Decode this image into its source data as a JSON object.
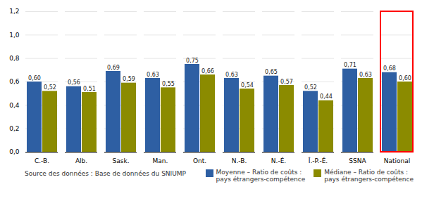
{
  "chart_data": {
    "type": "bar",
    "categories": [
      "C.-B.",
      "Alb.",
      "Sask.",
      "Man.",
      "Ont.",
      "N.-B.",
      "N.-É.",
      "Î.-P.-É.",
      "SSNA",
      "National"
    ],
    "series": [
      {
        "name": "Moyenne – Ratio de coûts :\npays étrangers-compétence",
        "color": "#2E5FA3",
        "values": [
          0.6,
          0.56,
          0.69,
          0.63,
          0.75,
          0.63,
          0.65,
          0.52,
          0.71,
          0.68
        ],
        "value_labels": [
          "0,60",
          "0,56",
          "0,69",
          "0,63",
          "0,75",
          "0,63",
          "0,65",
          "0,52",
          "0,71",
          "0,68"
        ]
      },
      {
        "name": "Médiane – Ratio de coûts :\npays étrangers-compétence",
        "color": "#8B8B00",
        "values": [
          0.52,
          0.51,
          0.59,
          0.55,
          0.66,
          0.54,
          0.57,
          0.44,
          0.63,
          0.6
        ],
        "value_labels": [
          "0,52",
          "0,51",
          "0,59",
          "0,55",
          "0,66",
          "0,54",
          "0,57",
          "0,44",
          "0,63",
          "0,60"
        ]
      }
    ],
    "ylim": [
      0.0,
      1.2
    ],
    "yticks": [
      {
        "value": 0.0,
        "label": "0,0"
      },
      {
        "value": 0.2,
        "label": "0,2"
      },
      {
        "value": 0.4,
        "label": "0,4"
      },
      {
        "value": 0.6,
        "label": "0,6"
      },
      {
        "value": 0.8,
        "label": "0,8"
      },
      {
        "value": 1.0,
        "label": "1,0"
      },
      {
        "value": 1.2,
        "label": "1,2"
      }
    ],
    "grid": true,
    "data_labels": true,
    "legend": "bottom",
    "caption": "Source des données : Base de données du SNIUMP",
    "annotations": [
      {
        "type": "box",
        "x": "National",
        "color": "#FF0000"
      }
    ]
  }
}
